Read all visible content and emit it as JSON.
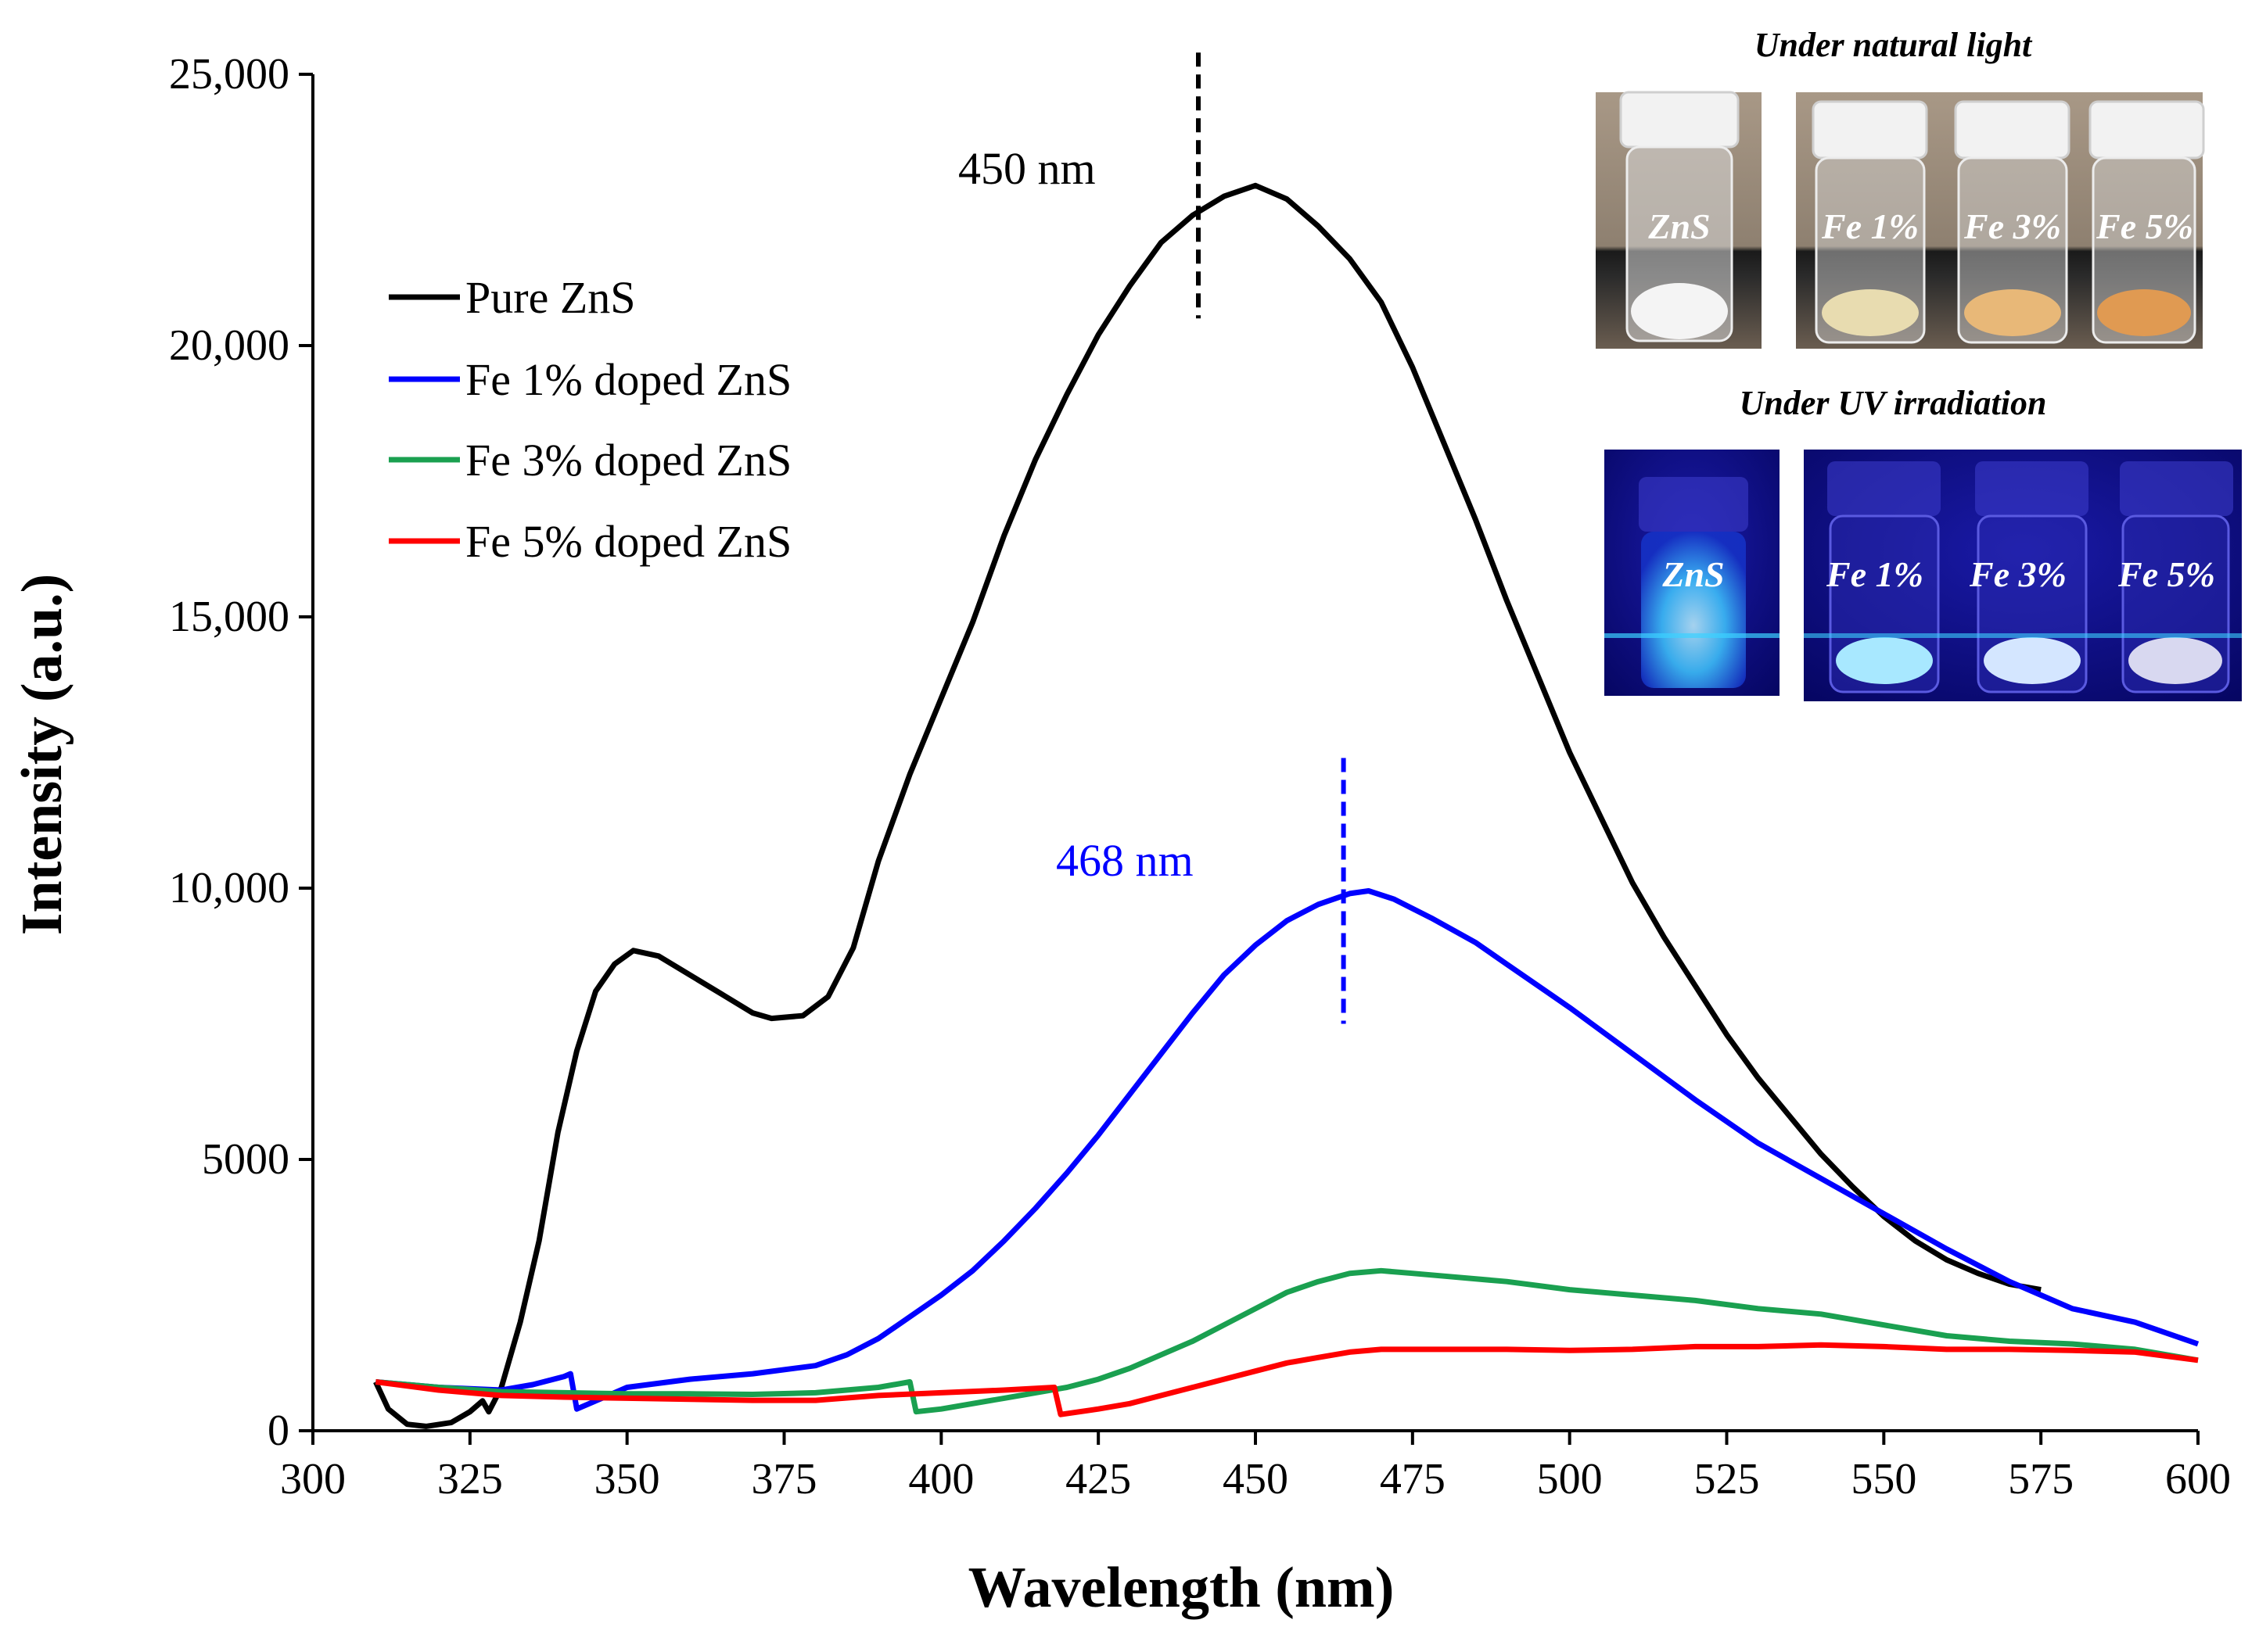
{
  "chart_data": {
    "type": "line",
    "xlabel": "Wavelength (nm)",
    "ylabel": "Intensity (a.u.)",
    "xlim": [
      300,
      600
    ],
    "ylim": [
      0,
      25000
    ],
    "x_ticks": [
      "300",
      "325",
      "350",
      "375",
      "400",
      "425",
      "450",
      "475",
      "500",
      "525",
      "550",
      "575",
      "600"
    ],
    "y_ticks": [
      "0",
      "5000",
      "10,000",
      "15,000",
      "20,000",
      "25,000"
    ],
    "grid": false,
    "legend_position": "top-left",
    "series": [
      {
        "name": "Pure ZnS",
        "color": "#000000",
        "points": [
          [
            310,
            900
          ],
          [
            312,
            400
          ],
          [
            315,
            120
          ],
          [
            318,
            80
          ],
          [
            322,
            150
          ],
          [
            325,
            350
          ],
          [
            327,
            550
          ],
          [
            328,
            350
          ],
          [
            330,
            800
          ],
          [
            333,
            2000
          ],
          [
            336,
            3500
          ],
          [
            339,
            5500
          ],
          [
            342,
            7000
          ],
          [
            345,
            8100
          ],
          [
            348,
            8600
          ],
          [
            351,
            8850
          ],
          [
            355,
            8750
          ],
          [
            360,
            8400
          ],
          [
            365,
            8050
          ],
          [
            370,
            7700
          ],
          [
            373,
            7600
          ],
          [
            378,
            7650
          ],
          [
            382,
            8000
          ],
          [
            386,
            8900
          ],
          [
            390,
            10500
          ],
          [
            395,
            12100
          ],
          [
            400,
            13500
          ],
          [
            405,
            14900
          ],
          [
            410,
            16500
          ],
          [
            415,
            17900
          ],
          [
            420,
            19100
          ],
          [
            425,
            20200
          ],
          [
            430,
            21100
          ],
          [
            435,
            21900
          ],
          [
            440,
            22400
          ],
          [
            445,
            22750
          ],
          [
            450,
            22950
          ],
          [
            455,
            22700
          ],
          [
            460,
            22200
          ],
          [
            465,
            21600
          ],
          [
            470,
            20800
          ],
          [
            475,
            19600
          ],
          [
            480,
            18200
          ],
          [
            485,
            16800
          ],
          [
            490,
            15300
          ],
          [
            495,
            13900
          ],
          [
            500,
            12500
          ],
          [
            505,
            11300
          ],
          [
            510,
            10100
          ],
          [
            515,
            9100
          ],
          [
            520,
            8200
          ],
          [
            525,
            7300
          ],
          [
            530,
            6500
          ],
          [
            535,
            5800
          ],
          [
            540,
            5100
          ],
          [
            545,
            4500
          ],
          [
            550,
            3950
          ],
          [
            555,
            3500
          ],
          [
            560,
            3150
          ],
          [
            565,
            2900
          ],
          [
            570,
            2700
          ],
          [
            575,
            2600
          ]
        ]
      },
      {
        "name": "Fe 1% doped ZnS",
        "color": "#0000ff",
        "points": [
          [
            310,
            900
          ],
          [
            320,
            800
          ],
          [
            330,
            750
          ],
          [
            335,
            850
          ],
          [
            340,
            1000
          ],
          [
            341,
            1050
          ],
          [
            342,
            400
          ],
          [
            346,
            600
          ],
          [
            350,
            800
          ],
          [
            360,
            950
          ],
          [
            370,
            1050
          ],
          [
            380,
            1200
          ],
          [
            385,
            1400
          ],
          [
            390,
            1700
          ],
          [
            395,
            2100
          ],
          [
            400,
            2500
          ],
          [
            405,
            2950
          ],
          [
            410,
            3500
          ],
          [
            415,
            4100
          ],
          [
            420,
            4750
          ],
          [
            425,
            5450
          ],
          [
            430,
            6200
          ],
          [
            435,
            6950
          ],
          [
            440,
            7700
          ],
          [
            445,
            8400
          ],
          [
            450,
            8950
          ],
          [
            455,
            9400
          ],
          [
            460,
            9700
          ],
          [
            465,
            9900
          ],
          [
            468,
            9950
          ],
          [
            472,
            9800
          ],
          [
            478,
            9450
          ],
          [
            485,
            9000
          ],
          [
            490,
            8600
          ],
          [
            500,
            7800
          ],
          [
            510,
            6950
          ],
          [
            520,
            6100
          ],
          [
            530,
            5300
          ],
          [
            540,
            4650
          ],
          [
            550,
            4000
          ],
          [
            560,
            3350
          ],
          [
            570,
            2750
          ],
          [
            575,
            2500
          ],
          [
            580,
            2250
          ],
          [
            590,
            2000
          ],
          [
            600,
            1600
          ]
        ]
      },
      {
        "name": "Fe 3% doped ZnS",
        "color": "#1aa050",
        "points": [
          [
            310,
            900
          ],
          [
            320,
            800
          ],
          [
            330,
            720
          ],
          [
            340,
            700
          ],
          [
            350,
            680
          ],
          [
            360,
            680
          ],
          [
            370,
            670
          ],
          [
            380,
            700
          ],
          [
            390,
            800
          ],
          [
            395,
            900
          ],
          [
            396,
            350
          ],
          [
            400,
            400
          ],
          [
            410,
            600
          ],
          [
            420,
            800
          ],
          [
            425,
            950
          ],
          [
            430,
            1150
          ],
          [
            435,
            1400
          ],
          [
            440,
            1650
          ],
          [
            445,
            1950
          ],
          [
            450,
            2250
          ],
          [
            455,
            2550
          ],
          [
            460,
            2750
          ],
          [
            465,
            2900
          ],
          [
            470,
            2950
          ],
          [
            475,
            2900
          ],
          [
            480,
            2850
          ],
          [
            490,
            2750
          ],
          [
            500,
            2600
          ],
          [
            510,
            2500
          ],
          [
            520,
            2400
          ],
          [
            530,
            2250
          ],
          [
            540,
            2150
          ],
          [
            550,
            1950
          ],
          [
            560,
            1750
          ],
          [
            570,
            1650
          ],
          [
            580,
            1600
          ],
          [
            590,
            1500
          ],
          [
            600,
            1300
          ]
        ]
      },
      {
        "name": "Fe 5% doped ZnS",
        "color": "#ff0000",
        "points": [
          [
            310,
            900
          ],
          [
            320,
            750
          ],
          [
            330,
            650
          ],
          [
            340,
            620
          ],
          [
            350,
            600
          ],
          [
            360,
            580
          ],
          [
            370,
            560
          ],
          [
            380,
            560
          ],
          [
            390,
            650
          ],
          [
            400,
            700
          ],
          [
            410,
            750
          ],
          [
            418,
            800
          ],
          [
            419,
            300
          ],
          [
            425,
            400
          ],
          [
            430,
            500
          ],
          [
            435,
            650
          ],
          [
            440,
            800
          ],
          [
            445,
            950
          ],
          [
            450,
            1100
          ],
          [
            455,
            1250
          ],
          [
            460,
            1350
          ],
          [
            465,
            1450
          ],
          [
            470,
            1500
          ],
          [
            480,
            1500
          ],
          [
            490,
            1500
          ],
          [
            500,
            1480
          ],
          [
            510,
            1500
          ],
          [
            520,
            1550
          ],
          [
            530,
            1550
          ],
          [
            540,
            1580
          ],
          [
            550,
            1550
          ],
          [
            560,
            1500
          ],
          [
            570,
            1500
          ],
          [
            580,
            1480
          ],
          [
            590,
            1450
          ],
          [
            600,
            1300
          ]
        ]
      }
    ],
    "annotations": [
      {
        "text": "450 nm",
        "x": 450,
        "color": "#000000"
      },
      {
        "text": "468 nm",
        "x": 468,
        "color": "#0000ff"
      }
    ]
  },
  "inset": {
    "natural_title": "Under natural light",
    "uv_title": "Under UV irradiation",
    "vials": [
      "ZnS",
      "Fe 1%",
      "Fe 3%",
      "Fe 5%"
    ]
  }
}
